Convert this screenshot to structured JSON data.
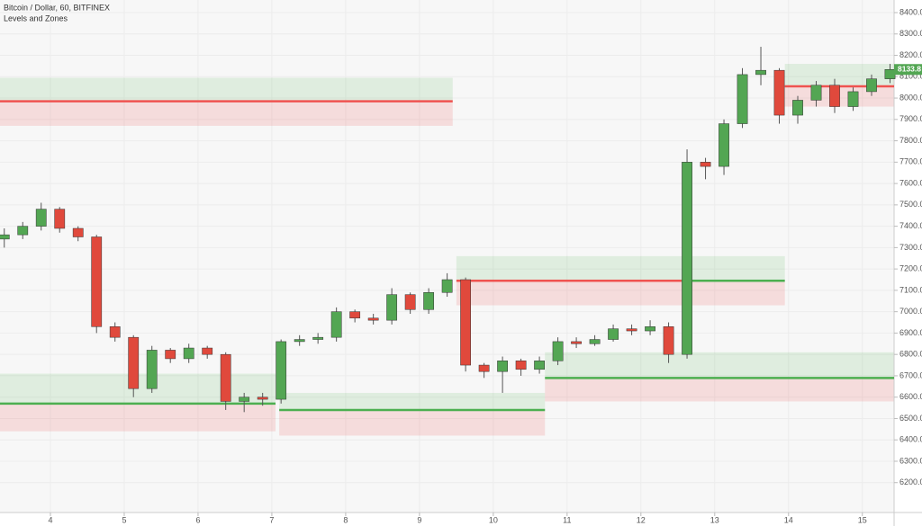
{
  "chart_data": {
    "type": "candlestick",
    "title": "Bitcoin / Dollar, 60, BITFINEX",
    "subtitle": "Levels and Zones",
    "x": [
      3.375,
      3.625,
      3.875,
      4.125,
      4.375,
      4.625,
      4.875,
      5.125,
      5.375,
      5.625,
      5.875,
      6.125,
      6.375,
      6.625,
      6.875,
      7.125,
      7.375,
      7.625,
      7.875,
      8.125,
      8.375,
      8.625,
      8.875,
      9.125,
      9.375,
      9.625,
      9.875,
      10.125,
      10.375,
      10.625,
      10.875,
      11.125,
      11.375,
      11.625,
      11.875,
      12.125,
      12.375,
      12.625,
      12.875,
      13.125,
      13.375,
      13.625,
      13.875,
      14.125,
      14.375,
      14.625,
      14.875,
      15.125,
      15.375
    ],
    "open": [
      7340,
      7360,
      7400,
      7480,
      7390,
      7350,
      6930,
      6880,
      6640,
      6820,
      6780,
      6830,
      6800,
      6580,
      6600,
      6590,
      6860,
      6870,
      6880,
      7000,
      6970,
      6960,
      7080,
      7010,
      7090,
      7150,
      6750,
      6720,
      6770,
      6730,
      6770,
      6860,
      6850,
      6870,
      6920,
      6910,
      6930,
      6800,
      7700,
      7680,
      7880,
      8110,
      8130,
      7920,
      7990,
      8060,
      7960,
      8030,
      8090
    ],
    "high": [
      7390,
      7420,
      7510,
      7490,
      7400,
      7360,
      6950,
      6890,
      6840,
      6830,
      6850,
      6840,
      6810,
      6620,
      6620,
      6870,
      6890,
      6900,
      7020,
      7010,
      6990,
      7110,
      7090,
      7110,
      7180,
      7160,
      6760,
      6790,
      6780,
      6790,
      6880,
      6880,
      6890,
      6940,
      6940,
      6960,
      6950,
      7760,
      7720,
      7900,
      8140,
      8240,
      8140,
      8010,
      8080,
      8090,
      8050,
      8110,
      8160
    ],
    "low": [
      7300,
      7340,
      7380,
      7370,
      7330,
      6900,
      6860,
      6600,
      6620,
      6760,
      6760,
      6780,
      6540,
      6530,
      6560,
      6570,
      6840,
      6850,
      6860,
      6950,
      6940,
      6940,
      6990,
      6990,
      7070,
      6720,
      6690,
      6620,
      6700,
      6710,
      6750,
      6830,
      6840,
      6860,
      6890,
      6890,
      6760,
      6780,
      7620,
      7640,
      7860,
      8060,
      7880,
      7880,
      7960,
      7930,
      7940,
      8010,
      8070
    ],
    "close": [
      7360,
      7400,
      7480,
      7390,
      7350,
      6930,
      6880,
      6640,
      6820,
      6780,
      6830,
      6800,
      6580,
      6600,
      6590,
      6860,
      6870,
      6880,
      7000,
      6970,
      6960,
      7080,
      7010,
      7090,
      7150,
      6750,
      6720,
      6770,
      6730,
      6770,
      6860,
      6850,
      6870,
      6920,
      6910,
      6930,
      6800,
      7700,
      7680,
      7880,
      8110,
      8130,
      7920,
      7990,
      8060,
      7960,
      8030,
      8090,
      8133.8
    ],
    "up_color": "#53a653",
    "down_color": "#e0493c",
    "levels": [
      {
        "x0": 3.317,
        "x1": 9.45,
        "value": 7985,
        "zone_top": 8095,
        "zone_bottom": 7870,
        "color": "#ef5350"
      },
      {
        "x0": 3.317,
        "x1": 7.05,
        "value": 6570,
        "zone_top": 6710,
        "zone_bottom": 6440,
        "color": "#4caf50"
      },
      {
        "x0": 7.1,
        "x1": 10.7,
        "value": 6540,
        "zone_top": 6620,
        "zone_bottom": 6420,
        "color": "#4caf50"
      },
      {
        "x0": 9.5,
        "x1": 12.55,
        "value": 7145,
        "zone_top": 7260,
        "zone_bottom": 7030,
        "color": "#ef5350"
      },
      {
        "x0": 12.55,
        "x1": 13.95,
        "value": 7145,
        "zone_top": 7260,
        "zone_bottom": 7030,
        "color": "#4caf50"
      },
      {
        "x0": 10.7,
        "x1": 15.43,
        "value": 6690,
        "zone_top": 6810,
        "zone_bottom": 6580,
        "color": "#4caf50"
      },
      {
        "x0": 13.95,
        "x1": 15.43,
        "value": 8055,
        "zone_top": 8160,
        "zone_bottom": 7960,
        "color": "#ef5350"
      }
    ],
    "xlim": [
      3.317,
      15.43
    ],
    "ylim": [
      6060,
      8459
    ],
    "xticks": [
      4,
      5,
      6,
      7,
      8,
      9,
      10,
      11,
      12,
      13,
      14,
      15
    ],
    "yticks": [
      {
        "value": 6200,
        "label": "6200.0"
      },
      {
        "value": 6300,
        "label": "6300.0"
      },
      {
        "value": 6400,
        "label": "6400.0"
      },
      {
        "value": 6500,
        "label": "6500.0"
      },
      {
        "value": 6600,
        "label": "6600.0"
      },
      {
        "value": 6700,
        "label": "6700.0"
      },
      {
        "value": 6800,
        "label": "6800.0"
      },
      {
        "value": 6900,
        "label": "6900.0"
      },
      {
        "value": 7000,
        "label": "7000.0"
      },
      {
        "value": 7100,
        "label": "7100.0"
      },
      {
        "value": 7200,
        "label": "7200.0"
      },
      {
        "value": 7300,
        "label": "7300.0"
      },
      {
        "value": 7400,
        "label": "7400.0"
      },
      {
        "value": 7500,
        "label": "7500.0"
      },
      {
        "value": 7600,
        "label": "7600.0"
      },
      {
        "value": 7700,
        "label": "7700.0"
      },
      {
        "value": 7800,
        "label": "7800.0"
      },
      {
        "value": 7900,
        "label": "7900.0"
      },
      {
        "value": 8000,
        "label": "8000.0"
      },
      {
        "value": 8100,
        "label": "8100.0"
      },
      {
        "value": 8200,
        "label": "8200.0"
      },
      {
        "value": 8300,
        "label": "8300.0"
      },
      {
        "value": 8400,
        "label": "8400.0"
      }
    ],
    "grid": true
  }
}
